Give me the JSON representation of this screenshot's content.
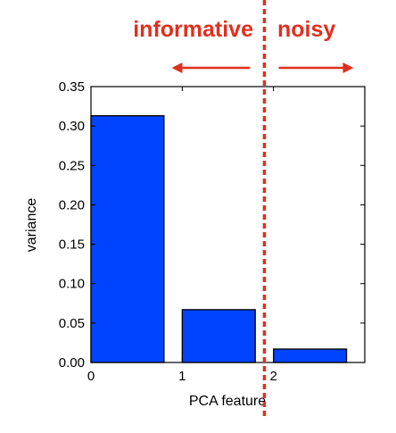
{
  "chart_data": {
    "type": "bar",
    "categories": [
      0,
      1,
      2
    ],
    "values": [
      0.313,
      0.067,
      0.017
    ],
    "xlabel": "PCA feature",
    "ylabel": "variance",
    "xlim": [
      0,
      3
    ],
    "ylim": [
      0,
      0.35
    ],
    "xticks": [
      "0",
      "1",
      "2"
    ],
    "yticks": [
      "0.00",
      "0.05",
      "0.10",
      "0.15",
      "0.20",
      "0.25",
      "0.30",
      "0.35"
    ],
    "bar_color": "#0044ff",
    "grid": false,
    "annotations": {
      "color": "#e0301e",
      "left_label": "informative",
      "right_label": "noisy",
      "divider_x": 1.9
    }
  }
}
